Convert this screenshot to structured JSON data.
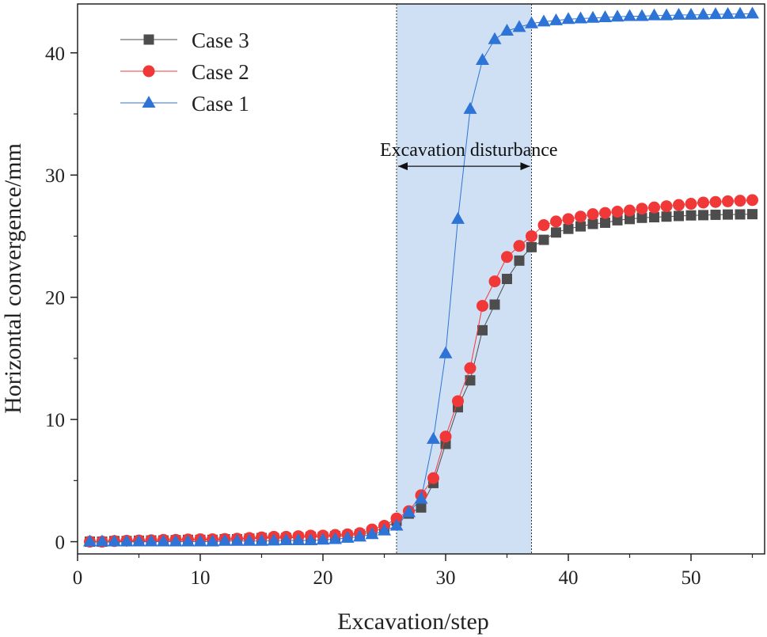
{
  "chart_data": {
    "type": "line",
    "title": "",
    "xlabel": "Excavation/step",
    "ylabel": "Horizontal convergence/mm",
    "xlim": [
      0,
      56
    ],
    "ylim": [
      -1,
      44
    ],
    "xticks": [
      0,
      10,
      20,
      30,
      40,
      50
    ],
    "yticks": [
      0,
      10,
      20,
      30,
      40
    ],
    "x_tick_labels": [
      "0",
      "10",
      "20",
      "30",
      "40",
      "50"
    ],
    "y_tick_labels": [
      "0",
      "10",
      "20",
      "30",
      "40"
    ],
    "grid": false,
    "legend_position": "top-left",
    "highlight_region": {
      "x_start": 26,
      "x_end": 37,
      "label": "Excavation disturbance",
      "label_y": 30.2,
      "arrow_y": 30.2,
      "color": "#cfe0f5"
    },
    "x": [
      1,
      2,
      3,
      4,
      5,
      6,
      7,
      8,
      9,
      10,
      11,
      12,
      13,
      14,
      15,
      16,
      17,
      18,
      19,
      20,
      21,
      22,
      23,
      24,
      25,
      26,
      27,
      28,
      29,
      30,
      31,
      32,
      33,
      34,
      35,
      36,
      37,
      38,
      39,
      40,
      41,
      42,
      43,
      44,
      45,
      46,
      47,
      48,
      49,
      50,
      51,
      52,
      53,
      54,
      55
    ],
    "series": [
      {
        "name": "Case 3",
        "color": "#4d4d4d",
        "marker": "square",
        "values": [
          0.0,
          0.0,
          0.05,
          0.05,
          0.08,
          0.1,
          0.1,
          0.12,
          0.15,
          0.15,
          0.15,
          0.2,
          0.2,
          0.25,
          0.3,
          0.3,
          0.3,
          0.35,
          0.4,
          0.4,
          0.45,
          0.5,
          0.6,
          0.8,
          1.1,
          1.7,
          2.3,
          2.8,
          4.8,
          8.0,
          11.0,
          13.2,
          17.3,
          19.4,
          21.5,
          23.0,
          24.1,
          24.7,
          25.3,
          25.6,
          25.8,
          26.0,
          26.1,
          26.3,
          26.4,
          26.5,
          26.55,
          26.6,
          26.65,
          26.7,
          26.72,
          26.75,
          26.77,
          26.78,
          26.8
        ]
      },
      {
        "name": "Case 2",
        "color": "#f03838",
        "marker": "circle",
        "values": [
          0.0,
          0.0,
          0.05,
          0.08,
          0.1,
          0.12,
          0.15,
          0.15,
          0.18,
          0.2,
          0.2,
          0.22,
          0.25,
          0.3,
          0.35,
          0.4,
          0.4,
          0.45,
          0.5,
          0.5,
          0.55,
          0.6,
          0.7,
          1.0,
          1.3,
          1.9,
          2.5,
          3.8,
          5.2,
          8.6,
          11.5,
          14.2,
          19.3,
          21.3,
          23.3,
          24.2,
          25.0,
          25.9,
          26.2,
          26.4,
          26.6,
          26.8,
          26.9,
          27.0,
          27.1,
          27.25,
          27.35,
          27.45,
          27.55,
          27.65,
          27.75,
          27.8,
          27.85,
          27.9,
          27.95
        ]
      },
      {
        "name": "Case 1",
        "color": "#2e73d6",
        "marker": "triangle",
        "values": [
          0.0,
          0.0,
          0.0,
          0.0,
          0.0,
          0.0,
          0.0,
          0.0,
          0.0,
          0.0,
          0.0,
          0.05,
          0.05,
          0.05,
          0.05,
          0.08,
          0.1,
          0.1,
          0.1,
          0.15,
          0.2,
          0.3,
          0.4,
          0.6,
          0.9,
          1.3,
          2.4,
          3.5,
          8.4,
          15.4,
          26.4,
          35.4,
          39.4,
          41.1,
          41.8,
          42.1,
          42.4,
          42.55,
          42.65,
          42.75,
          42.8,
          42.85,
          42.9,
          42.95,
          43.0,
          43.0,
          43.05,
          43.05,
          43.1,
          43.1,
          43.12,
          43.15,
          43.17,
          43.18,
          43.2
        ]
      }
    ]
  }
}
